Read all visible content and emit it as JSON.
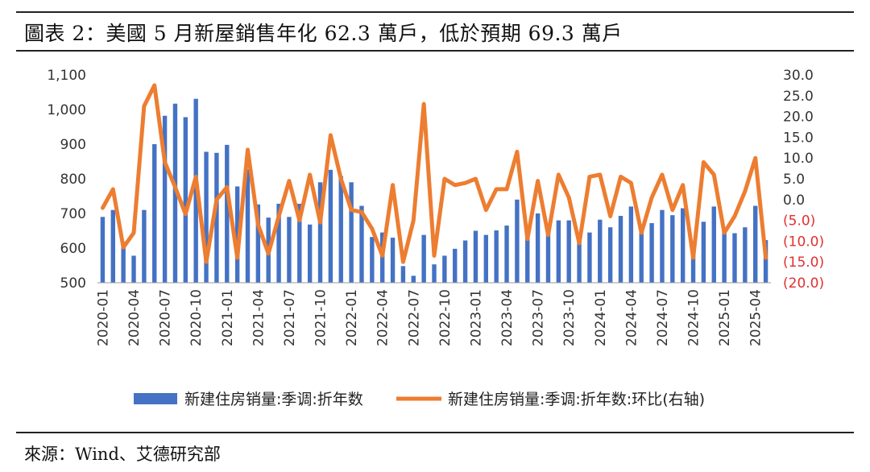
{
  "header": {
    "title": "圖表 2：美國 5 月新屋銷售年化 62.3 萬戶，低於預期 69.3 萬戶"
  },
  "footer": {
    "source": "來源：Wind、艾德研究部"
  },
  "colors": {
    "bar": "#4472C4",
    "line": "#ED7D31",
    "negative_label": "#E03030"
  },
  "chart_data": {
    "type": "bar+line",
    "categories": [
      "2020-01",
      "2020-02",
      "2020-03",
      "2020-04",
      "2020-05",
      "2020-06",
      "2020-07",
      "2020-08",
      "2020-09",
      "2020-10",
      "2020-11",
      "2020-12",
      "2021-01",
      "2021-02",
      "2021-03",
      "2021-04",
      "2021-05",
      "2021-06",
      "2021-07",
      "2021-08",
      "2021-09",
      "2021-10",
      "2021-11",
      "2021-12",
      "2022-01",
      "2022-02",
      "2022-03",
      "2022-04",
      "2022-05",
      "2022-06",
      "2022-07",
      "2022-08",
      "2022-09",
      "2022-10",
      "2022-11",
      "2022-12",
      "2023-01",
      "2023-02",
      "2023-03",
      "2023-04",
      "2023-05",
      "2023-06",
      "2023-07",
      "2023-08",
      "2023-09",
      "2023-10",
      "2023-11",
      "2023-12",
      "2024-01",
      "2024-02",
      "2024-03",
      "2024-04",
      "2024-05",
      "2024-06",
      "2024-07",
      "2024-08",
      "2024-09",
      "2024-10",
      "2024-11",
      "2024-12",
      "2025-01",
      "2025-02",
      "2025-03",
      "2025-04",
      "2025-05"
    ],
    "x_tick_labels": [
      "2020-01",
      "2020-04",
      "2020-07",
      "2020-10",
      "2021-01",
      "2021-04",
      "2021-07",
      "2021-10",
      "2022-01",
      "2022-04",
      "2022-07",
      "2022-10",
      "2023-01",
      "2023-04",
      "2023-07",
      "2023-10",
      "2024-01",
      "2024-04",
      "2024-07",
      "2024-10",
      "2025-01",
      "2025-04"
    ],
    "series": [
      {
        "name": "新建住房销量:季调:折年数",
        "type": "bar",
        "axis": "left",
        "values": [
          690,
          710,
          618,
          578,
          710,
          900,
          982,
          1017,
          978,
          1031,
          878,
          875,
          898,
          778,
          828,
          726,
          688,
          728,
          690,
          728,
          668,
          790,
          826,
          808,
          790,
          722,
          632,
          645,
          630,
          548,
          520,
          638,
          553,
          578,
          598,
          622,
          650,
          638,
          651,
          665,
          740,
          660,
          700,
          655,
          680,
          680,
          618,
          645,
          682,
          660,
          693,
          720,
          668,
          672,
          710,
          695,
          715,
          610,
          676,
          720,
          660,
          643,
          660,
          722,
          623
        ]
      },
      {
        "name": "新建住房销量:季调:折年数:环比(右轴)",
        "type": "line",
        "axis": "right",
        "values": [
          -2.0,
          2.5,
          -11.5,
          -8.0,
          22.5,
          27.5,
          9.0,
          3.0,
          -3.5,
          5.5,
          -15.0,
          0.0,
          3.0,
          -14.0,
          12.0,
          -6.0,
          -13.0,
          -4.0,
          4.5,
          -5.0,
          6.0,
          -5.5,
          15.5,
          5.0,
          -2.5,
          -3.0,
          -7.0,
          -13.5,
          3.5,
          -15.0,
          -5.0,
          23.0,
          -13.5,
          5.0,
          3.5,
          4.0,
          5.0,
          -2.5,
          2.5,
          2.5,
          11.5,
          -9.5,
          4.5,
          -8.5,
          6.0,
          0.5,
          -10.5,
          5.5,
          6.0,
          -4.0,
          5.5,
          4.0,
          -8.0,
          0.5,
          6.0,
          -2.5,
          3.5,
          -14.0,
          9.0,
          6.0,
          -8.0,
          -4.0,
          2.0,
          10.0,
          -14.0
        ]
      }
    ],
    "y_left": {
      "min": 500,
      "max": 1100,
      "ticks": [
        "500",
        "600",
        "700",
        "800",
        "900",
        "1,000",
        "1,100"
      ]
    },
    "y_right": {
      "min": -20,
      "max": 30,
      "ticks": [
        "(20.0)",
        "(15.0)",
        "(10.0)",
        "(5.0)",
        "0.0",
        "5.0",
        "10.0",
        "15.0",
        "20.0",
        "25.0",
        "30.0"
      ]
    },
    "legend": {
      "position": "bottom",
      "entries": [
        "新建住房销量:季调:折年数",
        "新建住房销量:季调:折年数:环比(右轴)"
      ]
    }
  }
}
